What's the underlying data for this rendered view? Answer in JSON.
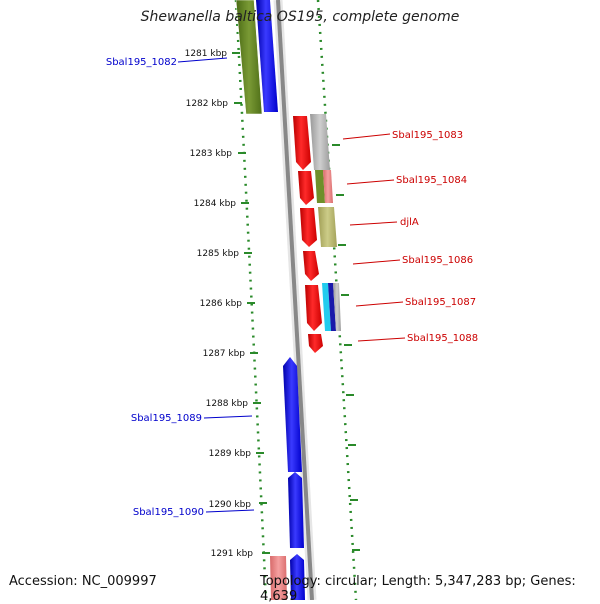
{
  "title": "Shewanella baltica OS195, complete genome",
  "footer": {
    "accession": "Accession: NC_009997",
    "info": "Topology: circular; Length: 5,347,283 bp; Genes: 4,639"
  },
  "ticks": [
    "1281 kbp",
    "1282 kbp",
    "1283 kbp",
    "1284 kbp",
    "1285 kbp",
    "1286 kbp",
    "1287 kbp",
    "1288 kbp",
    "1289 kbp",
    "1290 kbp",
    "1291 kbp"
  ],
  "genes_left": [
    "Sbal195_1082",
    "Sbal195_1089",
    "Sbal195_1090"
  ],
  "genes_right": [
    "Sbal195_1083",
    "Sbal195_1084",
    "djlA",
    "Sbal195_1086",
    "Sbal195_1087",
    "Sbal195_1088"
  ],
  "colors": {
    "forward_strand": "#0000ee",
    "reverse_strand": "#ee0000",
    "cog_olive": "#5f7f1f",
    "cog_khaki": "#b7b56a",
    "cog_grey": "#aaaaaa",
    "cog_pink": "#e98080",
    "cog_cyan": "#22ccee",
    "backbone": "#888888",
    "dots": "#2a8a2a"
  }
}
